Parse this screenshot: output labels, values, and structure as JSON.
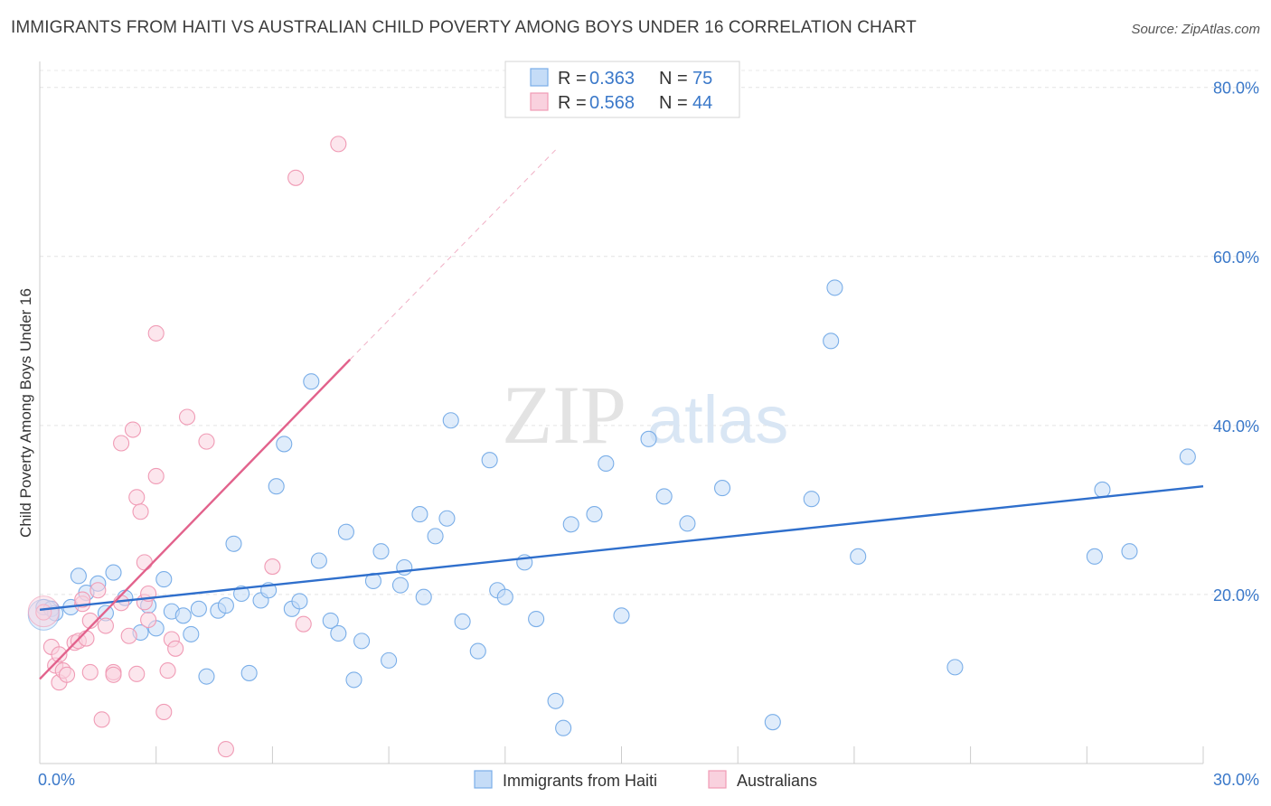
{
  "title": "IMMIGRANTS FROM HAITI VS AUSTRALIAN CHILD POVERTY AMONG BOYS UNDER 16 CORRELATION CHART",
  "source": "Source: ZipAtlas.com",
  "watermark": {
    "zip": "ZIP",
    "atlas": "atlas"
  },
  "chart_data": {
    "type": "scatter",
    "title": "IMMIGRANTS FROM HAITI VS AUSTRALIAN CHILD POVERTY AMONG BOYS UNDER 16 CORRELATION CHART",
    "xlabel": "",
    "ylabel": "Child Poverty Among Boys Under 16",
    "xlim": [
      0,
      30
    ],
    "ylim": [
      0,
      82
    ],
    "x_tick_labels": [
      {
        "value": 0,
        "label": "0.0%"
      },
      {
        "value": 30,
        "label": "30.0%"
      }
    ],
    "y_tick_labels": [
      {
        "value": 20,
        "label": "20.0%"
      },
      {
        "value": 40,
        "label": "40.0%"
      },
      {
        "value": 60,
        "label": "60.0%"
      },
      {
        "value": 80,
        "label": "80.0%"
      }
    ],
    "grid": true,
    "legend_position": "top-center",
    "series": [
      {
        "name": "Immigrants from Haiti",
        "color": "#7aaee8",
        "fill": "#c5dcf7",
        "line_color": "#2f6fcc",
        "R": "0.363",
        "N": "75",
        "trend": {
          "x": [
            0,
            30
          ],
          "y": [
            18.2,
            32.8
          ]
        },
        "points": [
          [
            0.1,
            18.5
          ],
          [
            0.3,
            18.3
          ],
          [
            0.4,
            17.8
          ],
          [
            0.8,
            18.5
          ],
          [
            1.0,
            22.2
          ],
          [
            1.2,
            20.2
          ],
          [
            1.5,
            21.3
          ],
          [
            1.7,
            17.8
          ],
          [
            1.9,
            22.6
          ],
          [
            2.2,
            19.6
          ],
          [
            2.6,
            15.5
          ],
          [
            2.8,
            18.7
          ],
          [
            3.0,
            16.0
          ],
          [
            3.2,
            21.8
          ],
          [
            3.4,
            18.0
          ],
          [
            3.7,
            17.5
          ],
          [
            3.9,
            15.3
          ],
          [
            4.1,
            18.3
          ],
          [
            4.3,
            10.3
          ],
          [
            4.6,
            18.1
          ],
          [
            4.8,
            18.7
          ],
          [
            5.0,
            26.0
          ],
          [
            5.2,
            20.1
          ],
          [
            5.4,
            10.7
          ],
          [
            5.7,
            19.3
          ],
          [
            5.9,
            20.5
          ],
          [
            6.1,
            32.8
          ],
          [
            6.3,
            37.8
          ],
          [
            6.5,
            18.3
          ],
          [
            6.7,
            19.2
          ],
          [
            7.0,
            45.2
          ],
          [
            7.2,
            24.0
          ],
          [
            7.5,
            16.9
          ],
          [
            7.7,
            15.4
          ],
          [
            7.9,
            27.4
          ],
          [
            8.1,
            9.9
          ],
          [
            8.3,
            14.5
          ],
          [
            8.6,
            21.6
          ],
          [
            8.8,
            25.1
          ],
          [
            9.0,
            12.2
          ],
          [
            9.3,
            21.1
          ],
          [
            9.4,
            23.2
          ],
          [
            9.8,
            29.5
          ],
          [
            9.9,
            19.7
          ],
          [
            10.2,
            26.9
          ],
          [
            10.5,
            29.0
          ],
          [
            10.6,
            40.6
          ],
          [
            10.9,
            16.8
          ],
          [
            11.3,
            13.3
          ],
          [
            11.6,
            35.9
          ],
          [
            11.8,
            20.5
          ],
          [
            12.0,
            19.7
          ],
          [
            12.5,
            23.8
          ],
          [
            12.8,
            17.1
          ],
          [
            13.3,
            7.4
          ],
          [
            13.5,
            4.2
          ],
          [
            13.7,
            28.3
          ],
          [
            14.3,
            29.5
          ],
          [
            14.6,
            35.5
          ],
          [
            15.0,
            17.5
          ],
          [
            15.7,
            38.4
          ],
          [
            16.1,
            31.6
          ],
          [
            16.7,
            28.4
          ],
          [
            17.6,
            32.6
          ],
          [
            18.9,
            4.9
          ],
          [
            19.9,
            31.3
          ],
          [
            20.4,
            50.0
          ],
          [
            20.5,
            56.3
          ],
          [
            21.1,
            24.5
          ],
          [
            23.6,
            11.4
          ],
          [
            27.2,
            24.5
          ],
          [
            27.4,
            32.4
          ],
          [
            28.1,
            25.1
          ],
          [
            29.6,
            36.3
          ],
          [
            0.1,
            17.6
          ]
        ]
      },
      {
        "name": "Australians",
        "color": "#f09bb5",
        "fill": "#f9d1de",
        "line_color": "#e2628c",
        "R": "0.568",
        "N": "44",
        "trend": {
          "x": [
            0,
            8.0
          ],
          "y": [
            10.0,
            47.8
          ]
        },
        "trend_dashed": {
          "x": [
            8.0,
            13.3
          ],
          "y": [
            47.8,
            72.6
          ]
        },
        "points": [
          [
            0.1,
            17.9
          ],
          [
            0.3,
            13.8
          ],
          [
            0.4,
            11.6
          ],
          [
            0.5,
            12.9
          ],
          [
            0.5,
            9.6
          ],
          [
            0.6,
            11.0
          ],
          [
            0.7,
            10.5
          ],
          [
            0.9,
            14.3
          ],
          [
            1.0,
            14.5
          ],
          [
            1.1,
            18.9
          ],
          [
            1.1,
            19.4
          ],
          [
            1.2,
            14.8
          ],
          [
            1.3,
            10.8
          ],
          [
            1.3,
            16.9
          ],
          [
            1.5,
            20.5
          ],
          [
            1.6,
            5.2
          ],
          [
            1.7,
            16.3
          ],
          [
            1.9,
            10.8
          ],
          [
            1.9,
            10.5
          ],
          [
            2.1,
            19.0
          ],
          [
            2.1,
            37.9
          ],
          [
            2.3,
            15.1
          ],
          [
            2.4,
            39.5
          ],
          [
            2.5,
            31.5
          ],
          [
            2.5,
            10.6
          ],
          [
            2.6,
            29.8
          ],
          [
            2.7,
            19.1
          ],
          [
            2.8,
            20.1
          ],
          [
            2.7,
            23.8
          ],
          [
            2.8,
            17.0
          ],
          [
            3.0,
            34.0
          ],
          [
            3.0,
            50.9
          ],
          [
            3.2,
            6.1
          ],
          [
            3.3,
            11.0
          ],
          [
            3.4,
            14.7
          ],
          [
            3.5,
            13.6
          ],
          [
            3.8,
            41.0
          ],
          [
            4.3,
            38.1
          ],
          [
            4.8,
            1.7
          ],
          [
            6.0,
            23.3
          ],
          [
            6.6,
            69.3
          ],
          [
            6.8,
            16.5
          ],
          [
            7.7,
            73.3
          ],
          [
            0.1,
            18.0
          ]
        ]
      }
    ]
  }
}
